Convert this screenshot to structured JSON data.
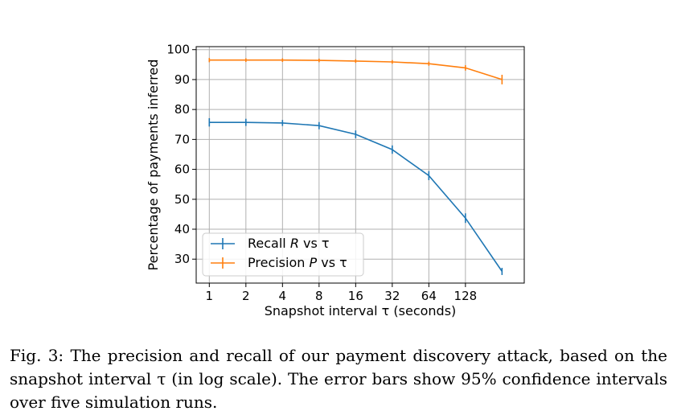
{
  "chart_data": {
    "type": "line",
    "xlabel": "Snapshot interval τ (seconds)",
    "ylabel": "Percentage of payments inferred",
    "xscale": "log2",
    "x": [
      1,
      2,
      4,
      8,
      16,
      32,
      64,
      128,
      256
    ],
    "x_tick_values": [
      1,
      2,
      4,
      8,
      16,
      32,
      64,
      128
    ],
    "x_tick_labels": [
      "1",
      "2",
      "4",
      "8",
      "16",
      "32",
      "64",
      "128"
    ],
    "xlim": [
      0.78,
      390
    ],
    "ylim": [
      22,
      101
    ],
    "y_ticks": [
      30,
      40,
      50,
      60,
      70,
      80,
      90,
      100
    ],
    "grid": true,
    "legend_position": "lower-left",
    "series": [
      {
        "name": "Recall R vs τ",
        "color": "#1f77b4",
        "values": [
          75.7,
          75.7,
          75.5,
          74.6,
          71.7,
          66.6,
          57.9,
          43.7,
          25.9
        ],
        "err": [
          1.4,
          1.2,
          1.0,
          1.2,
          1.3,
          1.4,
          1.5,
          1.6,
          1.2
        ]
      },
      {
        "name": "Precision P vs τ",
        "color": "#ff7f0e",
        "values": [
          96.5,
          96.5,
          96.5,
          96.4,
          96.2,
          95.9,
          95.3,
          93.9,
          90.0
        ],
        "err": [
          0.7,
          0.6,
          0.6,
          0.6,
          0.6,
          0.6,
          0.7,
          0.9,
          1.6
        ]
      }
    ]
  },
  "legend": {
    "recall_prefix": "Recall ",
    "recall_var": "R",
    "recall_suffix": " vs τ",
    "precision_prefix": "Precision ",
    "precision_var": "P",
    "precision_suffix": " vs τ"
  },
  "caption": {
    "label": "Fig. 3:",
    "text": " The precision and recall of our payment discovery attack, based on the snapshot interval τ (in log scale). The error bars show 95% confidence intervals over five simulation runs."
  }
}
